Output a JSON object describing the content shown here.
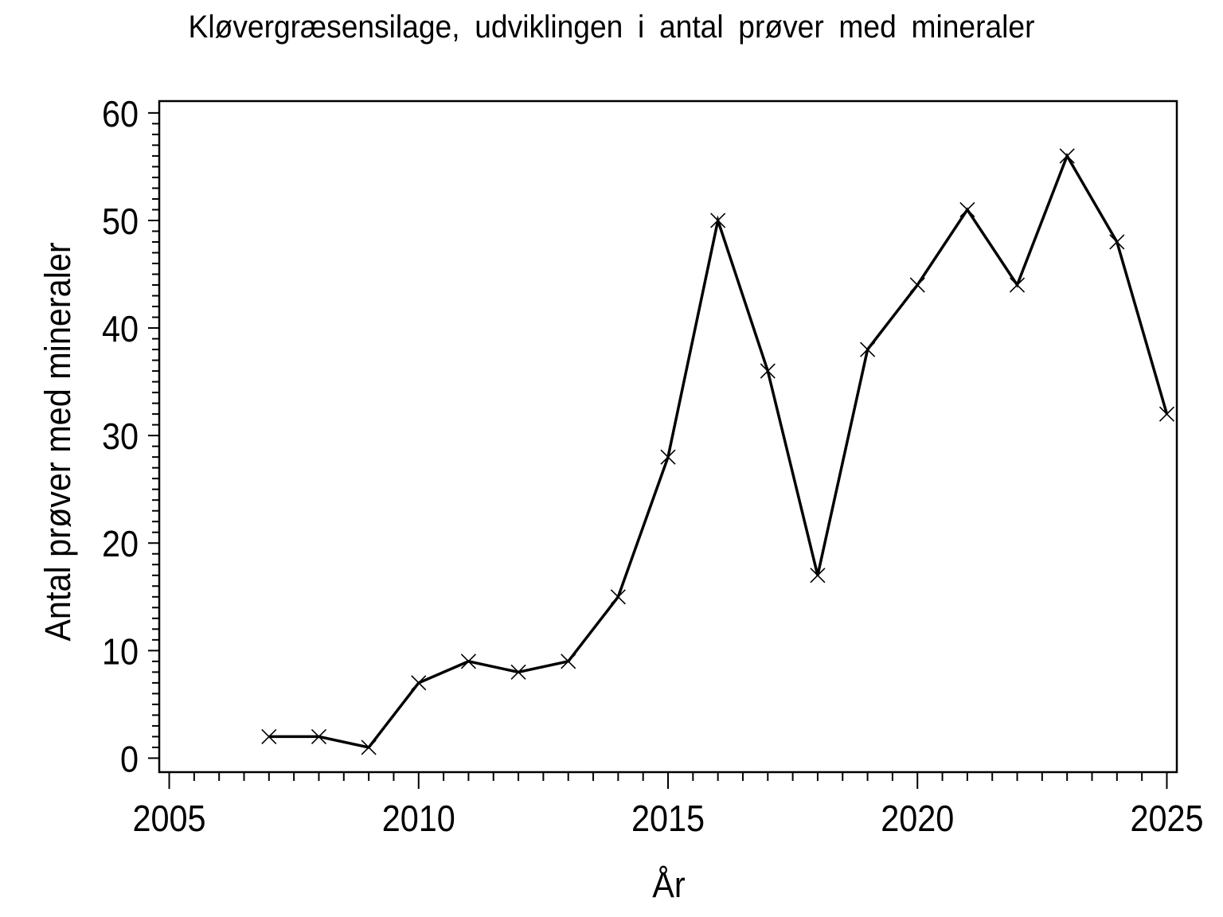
{
  "figure": {
    "background": "#ffffff",
    "foreground": "#000000"
  },
  "chart_data": {
    "type": "line",
    "title": "Kløvergræsensilage, udviklingen i antal prøver med mineraler",
    "xlabel": "År",
    "ylabel": "Antal prøver med mineraler",
    "x": [
      2007,
      2008,
      2009,
      2010,
      2011,
      2012,
      2013,
      2014,
      2015,
      2016,
      2017,
      2018,
      2019,
      2020,
      2021,
      2022,
      2023,
      2024,
      2025
    ],
    "values": [
      2,
      2,
      1,
      7,
      9,
      8,
      9,
      15,
      28,
      50,
      36,
      17,
      38,
      44,
      51,
      44,
      56,
      48,
      32
    ],
    "series_name": "Antal prøver med mineraler",
    "marker": "x",
    "line_color": "#000000",
    "xlim": [
      2004.8,
      2025.2
    ],
    "ylim": [
      -1.3,
      61.1
    ],
    "x_major_ticks": [
      2005,
      2010,
      2015,
      2020,
      2025
    ],
    "x_minor_step": 0.5,
    "y_major_ticks": [
      0,
      10,
      20,
      30,
      40,
      50,
      60
    ],
    "y_minor_step": 1,
    "grid": "off",
    "legend": "none"
  }
}
